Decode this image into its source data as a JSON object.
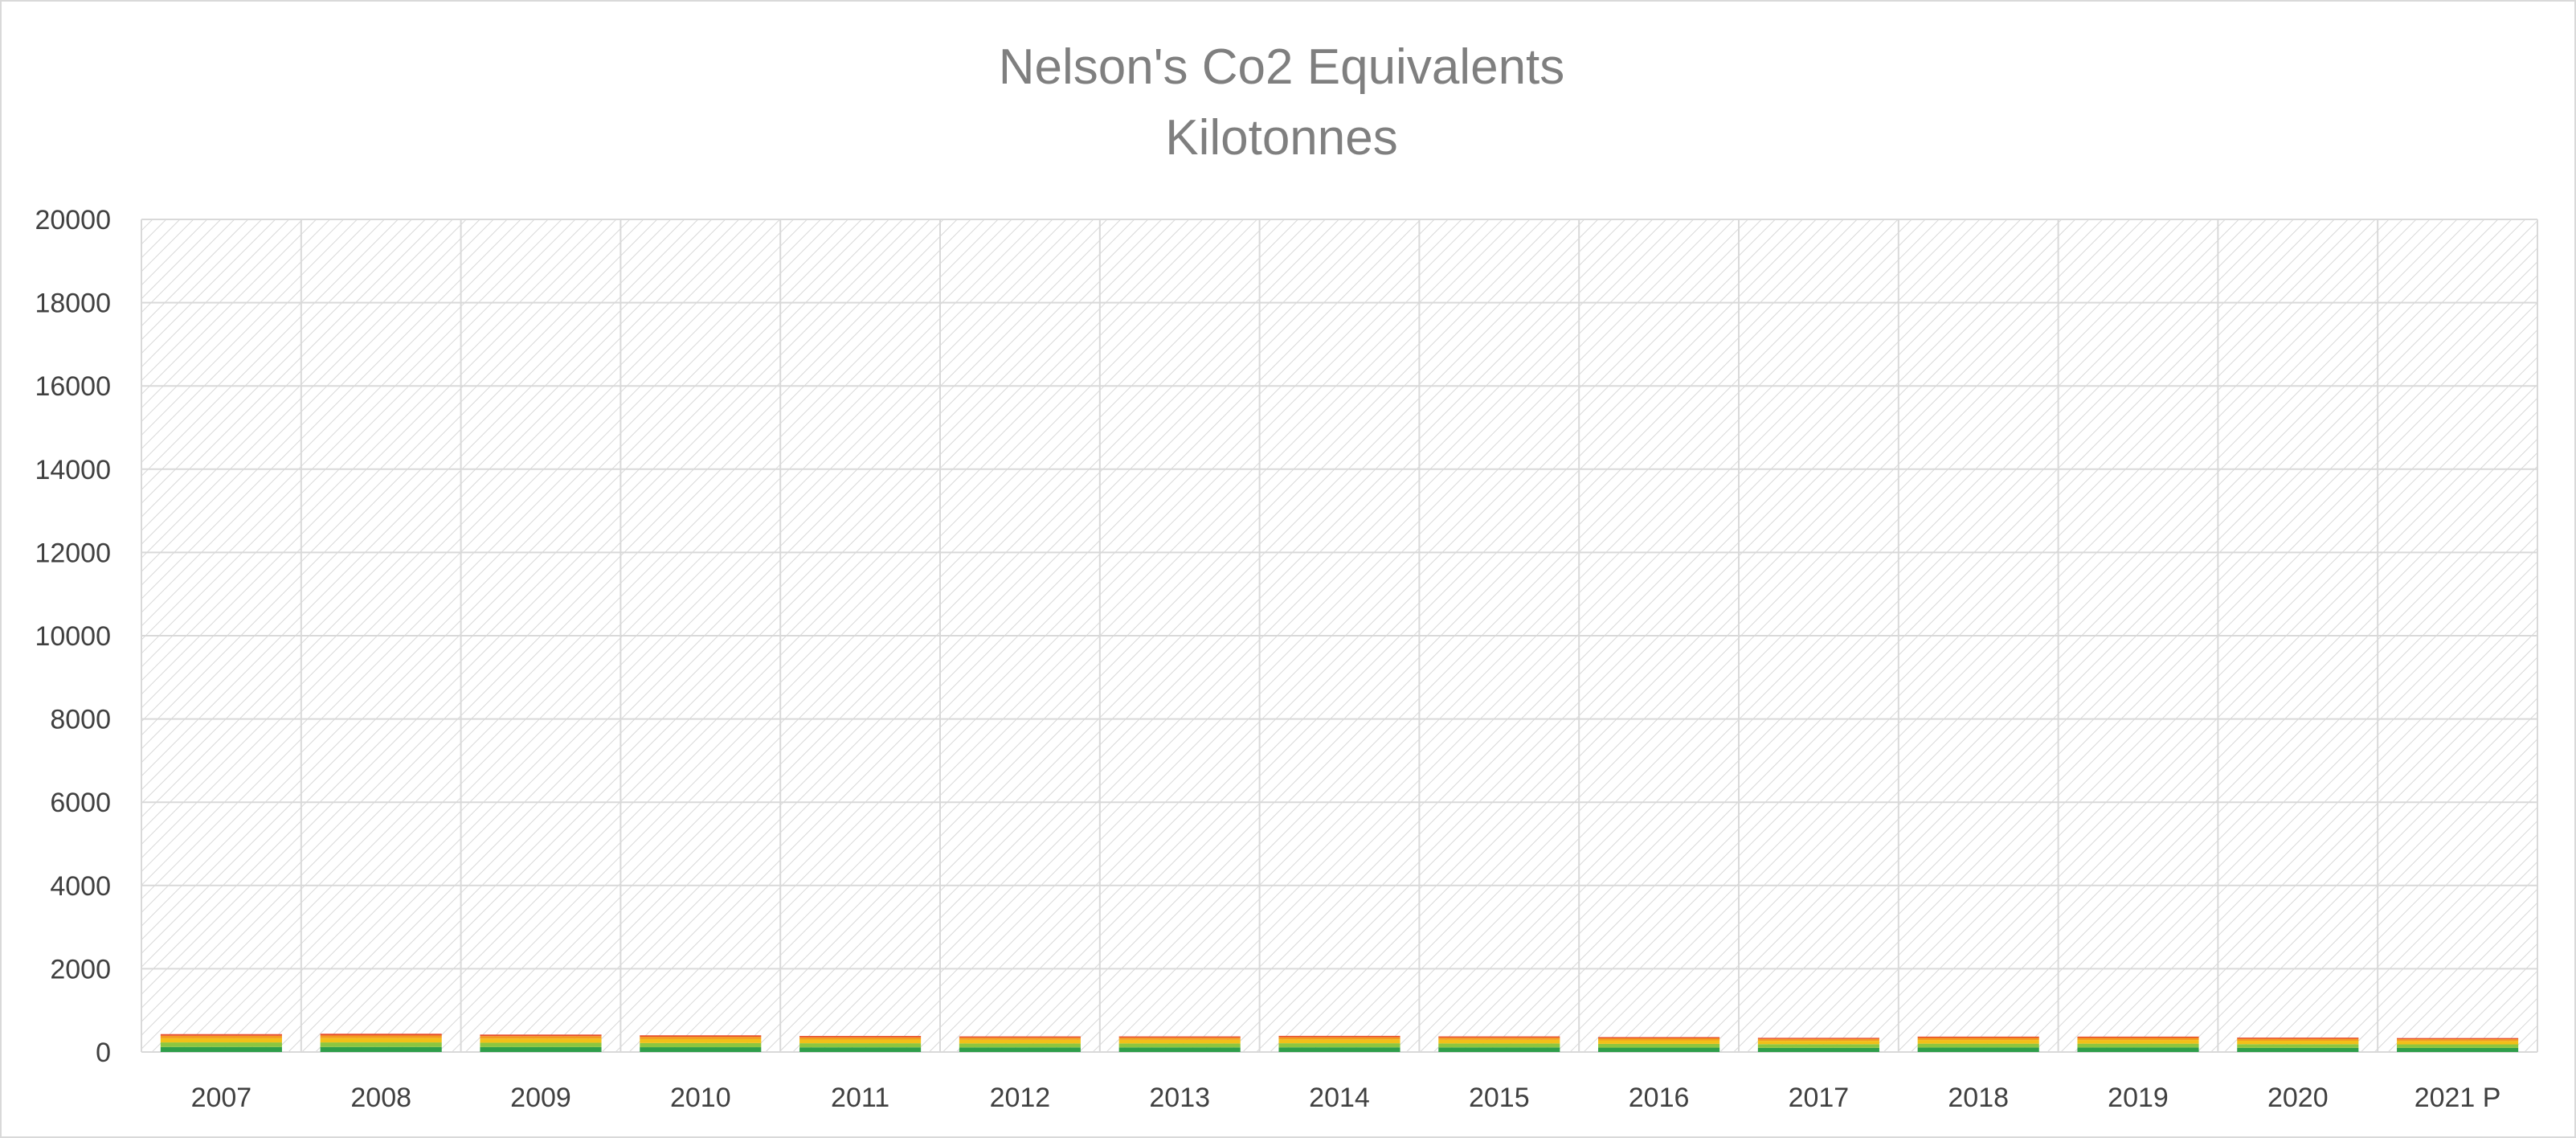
{
  "chart_data": {
    "type": "bar",
    "stacked": true,
    "title": "Nelson's Co2 Equivalents",
    "subtitle": "Kilotonnes",
    "xlabel": "",
    "ylabel": "",
    "ylim": [
      0,
      20000
    ],
    "yticks": [
      0,
      2000,
      4000,
      6000,
      8000,
      10000,
      12000,
      14000,
      16000,
      18000,
      20000
    ],
    "grid": true,
    "legend": "none",
    "categories": [
      "2007",
      "2008",
      "2009",
      "2010",
      "2011",
      "2012",
      "2013",
      "2014",
      "2015",
      "2016",
      "2017",
      "2018",
      "2019",
      "2020",
      "2021 P"
    ],
    "series": [
      {
        "color": "#2e9e4a",
        "values": [
          120,
          120,
          118,
          115,
          112,
          110,
          110,
          112,
          110,
          105,
          100,
          108,
          108,
          100,
          98
        ]
      },
      {
        "color": "#8cc63f",
        "values": [
          110,
          110,
          105,
          100,
          98,
          95,
          95,
          98,
          95,
          90,
          88,
          92,
          92,
          88,
          85
        ]
      },
      {
        "color": "#f2c018",
        "values": [
          100,
          105,
          100,
          95,
          90,
          88,
          88,
          92,
          88,
          85,
          80,
          88,
          88,
          82,
          80
        ]
      },
      {
        "color": "#f39c1f",
        "values": [
          60,
          62,
          58,
          55,
          52,
          50,
          50,
          52,
          50,
          48,
          45,
          50,
          50,
          46,
          44
        ]
      },
      {
        "color": "#e84f2a",
        "values": [
          40,
          42,
          38,
          36,
          34,
          32,
          32,
          34,
          32,
          30,
          28,
          32,
          32,
          30,
          28
        ]
      }
    ]
  }
}
